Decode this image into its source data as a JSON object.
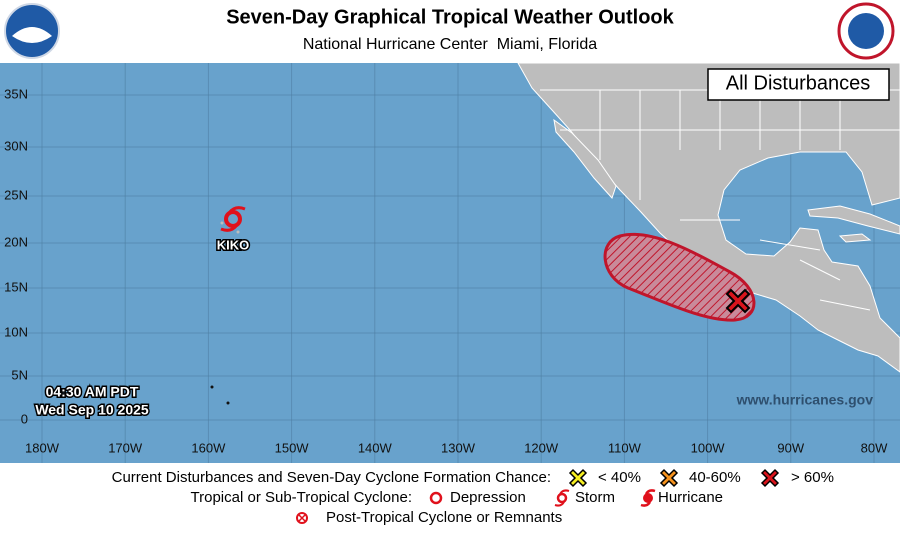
{
  "header": {
    "title": "Seven-Day Graphical Tropical Weather Outlook",
    "subtitle": "National Hurricane Center  Miami, Florida"
  },
  "map": {
    "panel_label": "All Disturbances",
    "lat_labels": [
      "35N",
      "30N",
      "25N",
      "20N",
      "15N",
      "10N",
      "5N",
      "0"
    ],
    "lon_labels": [
      "180W",
      "170W",
      "160W",
      "150W",
      "140W",
      "130W",
      "120W",
      "110W",
      "100W",
      "90W",
      "80W"
    ],
    "storms": [
      {
        "name": "KIKO"
      }
    ],
    "issued_time": "04:30 AM PDT",
    "issued_date": "Wed Sep 10 2025",
    "website": "www.hurricanes.gov"
  },
  "legend": {
    "disturbances_label": "Current Disturbances and Seven-Day Cyclone Formation Chance:",
    "chances": [
      "< 40%",
      "40-60%",
      "> 60%"
    ],
    "cyclone_label": "Tropical or Sub-Tropical Cyclone:",
    "cyclone_types": [
      "Depression",
      "Storm",
      "Hurricane"
    ],
    "post_tropical": "Post-Tropical Cyclone or Remnants"
  }
}
